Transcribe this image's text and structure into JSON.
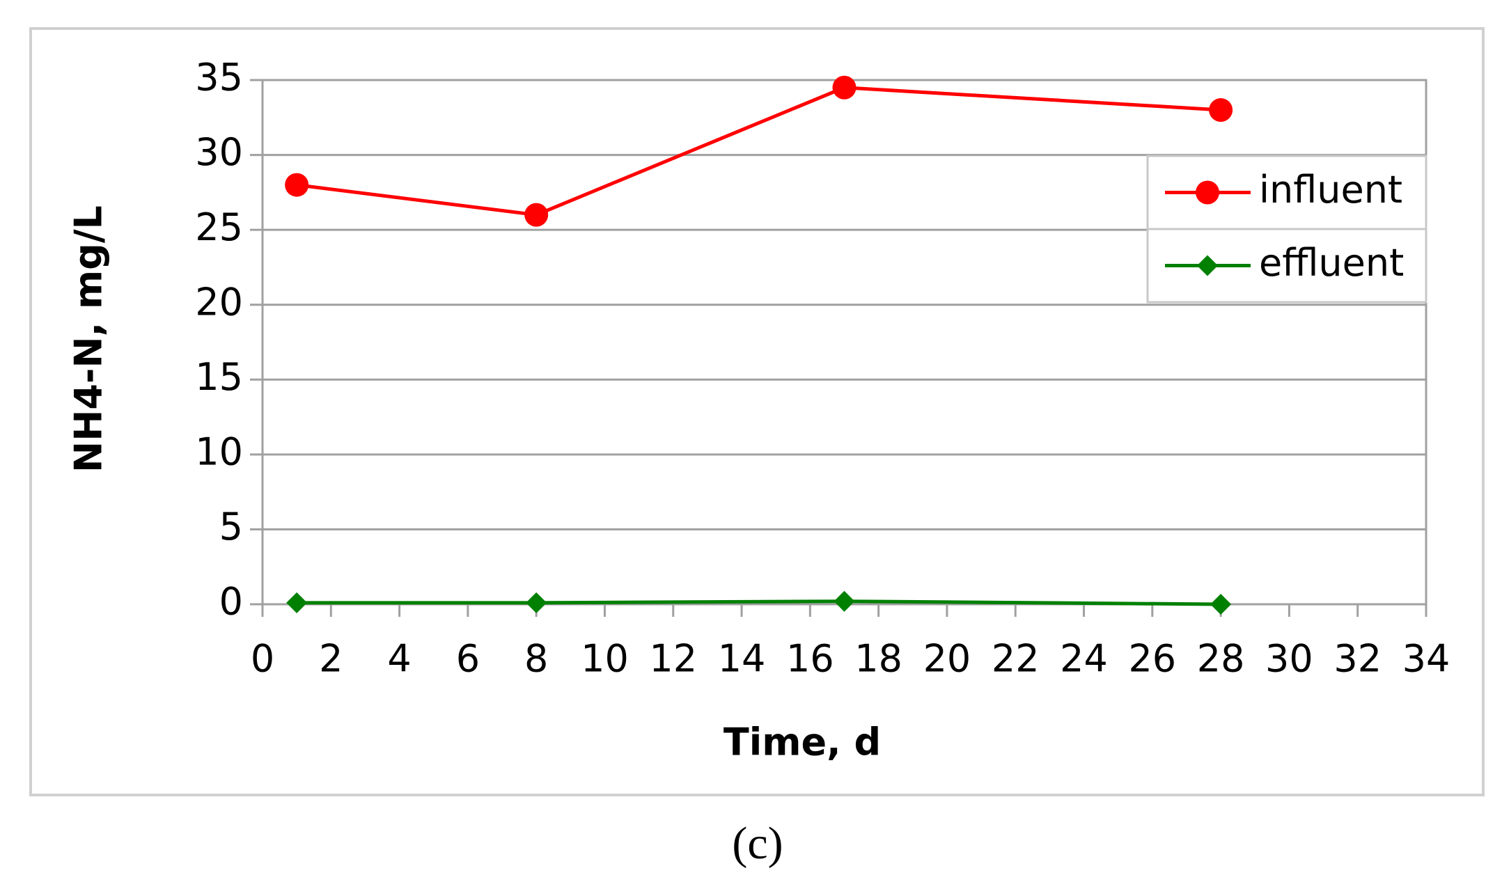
{
  "chart_data": {
    "type": "line",
    "x_label": "Time, d",
    "y_label": "NH4-N, mg/L",
    "caption": "(c)",
    "x": [
      1,
      8,
      17,
      28
    ],
    "series": [
      {
        "name": "influent",
        "color": "#ff0000",
        "marker": "circle",
        "values": [
          28,
          26,
          34.5,
          33
        ]
      },
      {
        "name": "effluent",
        "color": "#008000",
        "marker": "diamond",
        "values": [
          0.1,
          0.1,
          0.2,
          0
        ]
      }
    ],
    "xlim": [
      0,
      34
    ],
    "xticks": [
      0,
      2,
      4,
      6,
      8,
      10,
      12,
      14,
      16,
      18,
      20,
      22,
      24,
      26,
      28,
      30,
      32,
      34
    ],
    "ylim": [
      0,
      35
    ],
    "yticks": [
      0,
      5,
      10,
      15,
      20,
      25,
      30,
      35
    ],
    "grid": true,
    "legend": "upper right"
  }
}
